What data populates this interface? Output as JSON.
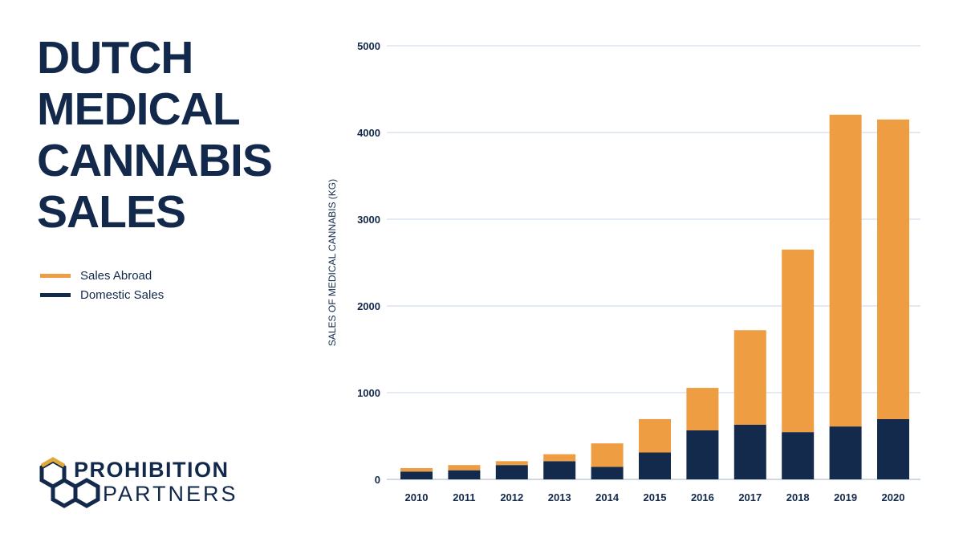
{
  "chart_data": {
    "type": "bar",
    "stacked": true,
    "title": "DUTCH MEDICAL CANNABIS SALES",
    "xlabel": "",
    "ylabel": "SALES OF MEDICAL CANNABIS (KG)",
    "ylim": [
      0,
      5000
    ],
    "yticks": [
      "0",
      "1000",
      "2000",
      "3000",
      "4000",
      "5000"
    ],
    "grid": true,
    "legend_placement": "left",
    "categories": [
      "2010",
      "2011",
      "2012",
      "2013",
      "2014",
      "2015",
      "2016",
      "2017",
      "2018",
      "2019",
      "2020"
    ],
    "series": [
      {
        "name": "Domestic Sales",
        "color": "#132a4c",
        "values": [
          90,
          105,
          165,
          210,
          145,
          310,
          565,
          630,
          545,
          610,
          695
        ]
      },
      {
        "name": "Sales Abroad",
        "color": "#ee9d43",
        "values": [
          40,
          60,
          45,
          80,
          270,
          385,
          490,
          1090,
          2105,
          3595,
          3455
        ]
      }
    ]
  },
  "legend": [
    {
      "label": "Sales Abroad",
      "color": "#ee9d43"
    },
    {
      "label": "Domestic Sales",
      "color": "#132a4c"
    }
  ],
  "logo": {
    "line1": "PROHIBITION",
    "line2": "PARTNERS"
  }
}
